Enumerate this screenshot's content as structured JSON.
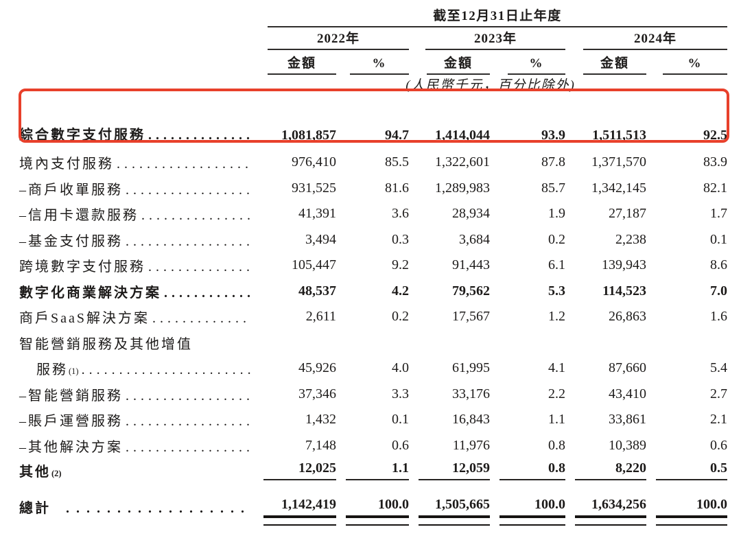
{
  "header": {
    "title": "截至12月31日止年度",
    "note": "(人民幣千元，百分比除外)",
    "years": [
      {
        "label": "2022年",
        "amount_label": "金額",
        "pct_label": "%"
      },
      {
        "label": "2023年",
        "amount_label": "金額",
        "pct_label": "%"
      },
      {
        "label": "2024年",
        "amount_label": "金額",
        "pct_label": "%"
      }
    ]
  },
  "highlight": {
    "color": "#e8402b",
    "highlighted_row": "綜合數字支付服務"
  },
  "table": {
    "rows": [
      {
        "label": "綜合數字支付服務",
        "bold": true,
        "leader": true,
        "highlighted": true,
        "cls": "first",
        "values": [
          "1,081,857",
          "94.7",
          "1,414,044",
          "93.9",
          "1,511,513",
          "92.5"
        ]
      },
      {
        "label": "境內支付服務",
        "leader": true,
        "values": [
          "976,410",
          "85.5",
          "1,322,601",
          "87.8",
          "1,371,570",
          "83.9"
        ]
      },
      {
        "label": "–商戶收單服務",
        "leader": true,
        "values": [
          "931,525",
          "81.6",
          "1,289,983",
          "85.7",
          "1,342,145",
          "82.1"
        ]
      },
      {
        "label": "–信用卡還款服務",
        "leader": true,
        "values": [
          "41,391",
          "3.6",
          "28,934",
          "1.9",
          "27,187",
          "1.7"
        ]
      },
      {
        "label": "–基金支付服務",
        "leader": true,
        "values": [
          "3,494",
          "0.3",
          "3,684",
          "0.2",
          "2,238",
          "0.1"
        ]
      },
      {
        "label": "跨境數字支付服務",
        "leader": true,
        "values": [
          "105,447",
          "9.2",
          "91,443",
          "6.1",
          "139,943",
          "8.6"
        ]
      },
      {
        "label": "數字化商業解決方案",
        "bold": true,
        "leader": true,
        "values": [
          "48,537",
          "4.2",
          "79,562",
          "5.3",
          "114,523",
          "7.0"
        ]
      },
      {
        "label": "商戶SaaS解決方案",
        "leader": true,
        "values": [
          "2,611",
          "0.2",
          "17,567",
          "1.2",
          "26,863",
          "1.6"
        ]
      },
      {
        "label": "智能營銷服務及其他增值",
        "leader": false,
        "values": []
      },
      {
        "label": "服務",
        "sup": "(1)",
        "indent": true,
        "leader": true,
        "values": [
          "45,926",
          "4.0",
          "61,995",
          "4.1",
          "87,660",
          "5.4"
        ]
      },
      {
        "label": "–智能營銷服務",
        "leader": true,
        "values": [
          "37,346",
          "3.3",
          "33,176",
          "2.2",
          "43,410",
          "2.7"
        ]
      },
      {
        "label": "–賬戶運營服務",
        "leader": true,
        "values": [
          "1,432",
          "0.1",
          "16,843",
          "1.1",
          "33,861",
          "2.1"
        ]
      },
      {
        "label": "–其他解決方案",
        "leader": true,
        "values": [
          "7,148",
          "0.6",
          "11,976",
          "0.8",
          "10,389",
          "0.6"
        ]
      },
      {
        "label": "其他",
        "sup": "(2)",
        "bold": true,
        "leader": false,
        "cls": "oth",
        "rule": "single",
        "values": [
          "12,025",
          "1.1",
          "12,059",
          "0.8",
          "8,220",
          "0.5"
        ]
      },
      {
        "label": "總計",
        "bold": true,
        "leader": true,
        "wide_leader": true,
        "cls": "tot",
        "rule": "double",
        "values": [
          "1,142,419",
          "100.0",
          "1,505,665",
          "100.0",
          "1,634,256",
          "100.0"
        ]
      }
    ]
  }
}
